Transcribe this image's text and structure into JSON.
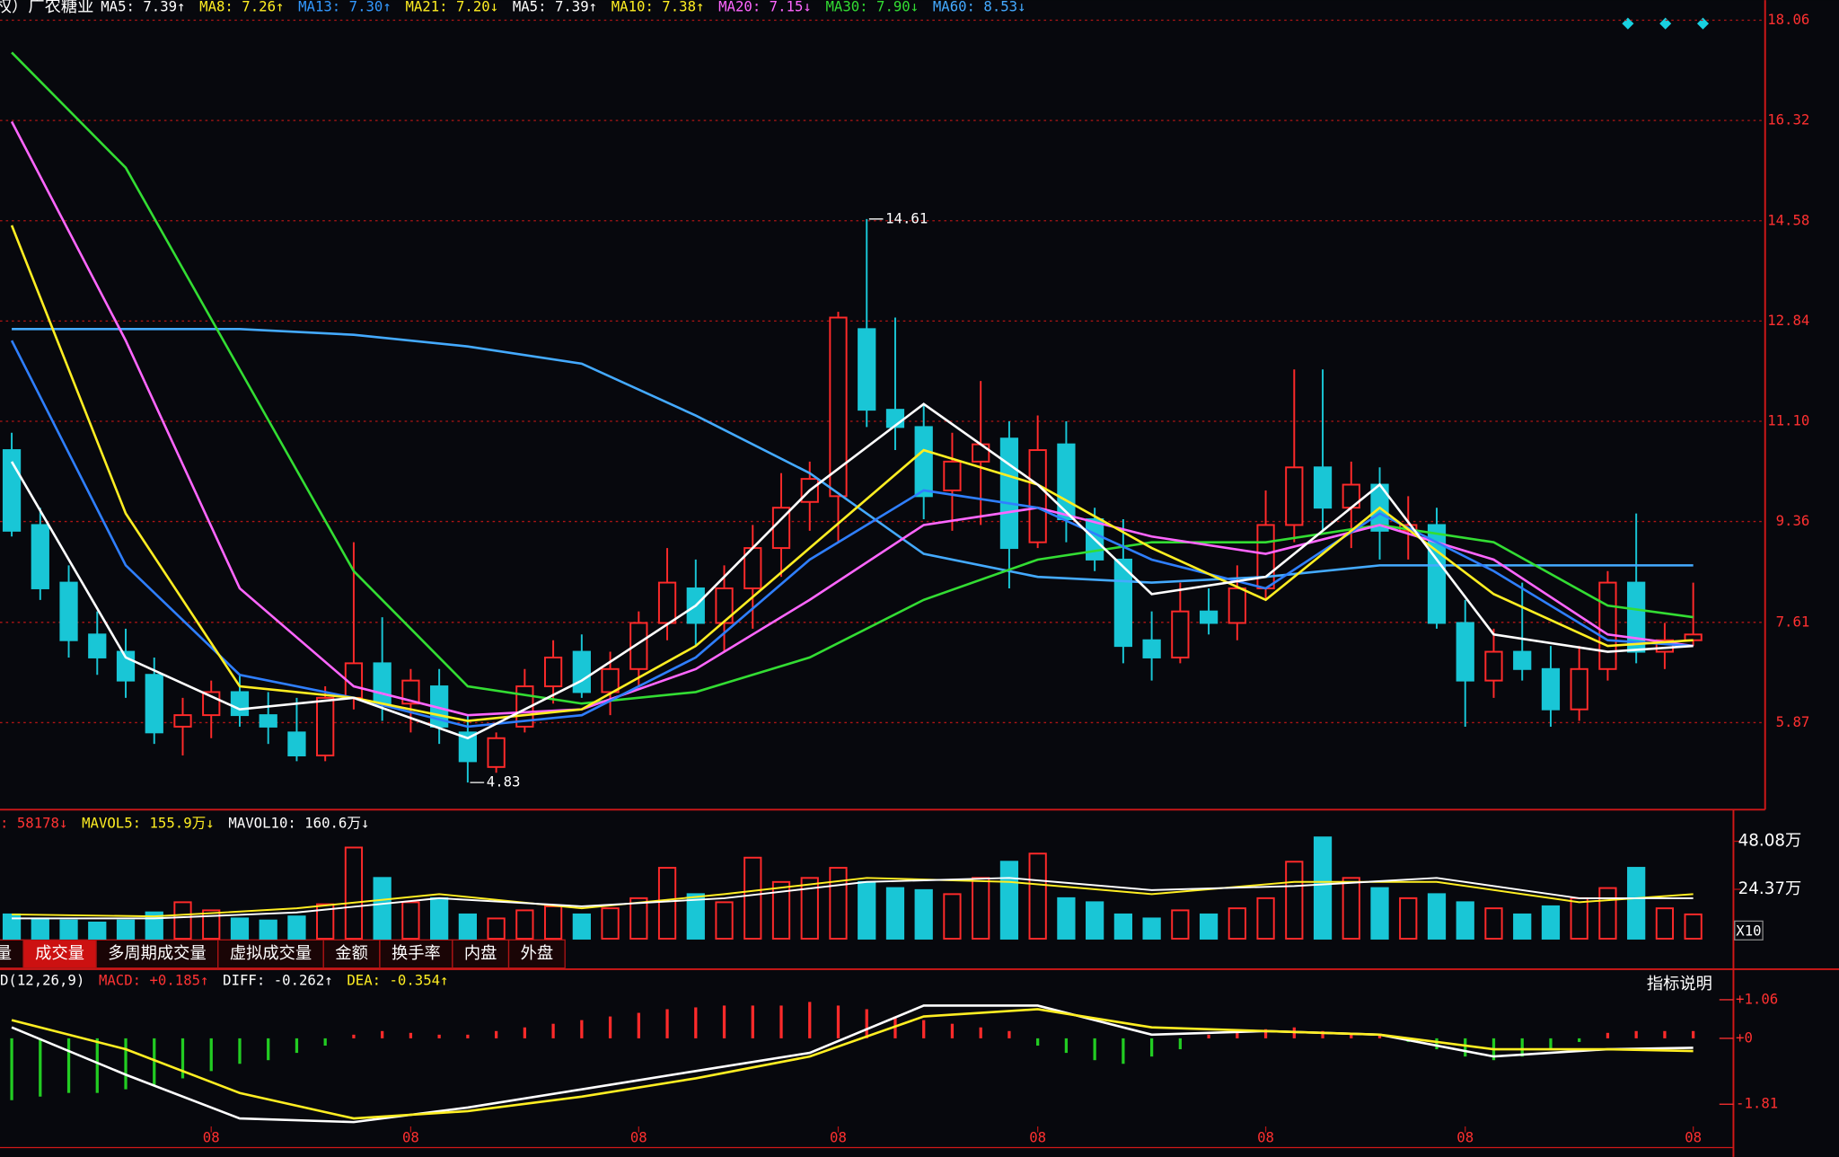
{
  "security": "权）广农糖业",
  "ma_legend": [
    {
      "text": "MA5: 7.39↑",
      "color": "#ffffff"
    },
    {
      "text": "MA8: 7.26↑",
      "color": "#ffee22"
    },
    {
      "text": "MA13: 7.30↑",
      "color": "#3399ff"
    },
    {
      "text": "MA21: 7.20↓",
      "color": "#ffee22"
    },
    {
      "text": "MA5: 7.39↑",
      "color": "#ffffff"
    },
    {
      "text": "MA10: 7.38↑",
      "color": "#ffee22"
    },
    {
      "text": "MA20: 7.15↓",
      "color": "#ff66ff"
    },
    {
      "text": "MA30: 7.90↓",
      "color": "#33dd33"
    },
    {
      "text": "MA60: 8.53↓",
      "color": "#44aaff"
    }
  ],
  "volume_legend": [
    {
      "text": ": 58178↓",
      "color": "#ff3333"
    },
    {
      "text": "MAVOL5: 155.9万↓",
      "color": "#ffee22"
    },
    {
      "text": "MAVOL10: 160.6万↓",
      "color": "#ffffff"
    }
  ],
  "macd_legend": [
    {
      "text": "D(12,26,9)",
      "color": "#ffffff"
    },
    {
      "text": "MACD: +0.185↑",
      "color": "#ff3333"
    },
    {
      "text": "DIFF: -0.262↑",
      "color": "#ffffff"
    },
    {
      "text": "DEA: -0.354↑",
      "color": "#ffee22"
    }
  ],
  "tabs": {
    "items": [
      "量",
      "成交量",
      "多周期成交量",
      "虚拟成交量",
      "金额",
      "换手率",
      "内盘",
      "外盘"
    ],
    "active": 1
  },
  "indicator_help": "指标说明",
  "volume_scale": "X10",
  "chart_data": [
    {
      "type": "candlestick",
      "up_color": "#ff2a2a",
      "down_color": "#19c6d6",
      "grid": true,
      "ylim": [
        4.36,
        18.41
      ],
      "yticks": [
        18.06,
        16.32,
        14.58,
        12.84,
        {
          "value": 11.1,
          "label": "11.10"
        },
        9.36,
        7.61,
        5.87
      ],
      "open": [
        10.6,
        9.3,
        8.3,
        7.4,
        7.1,
        6.7,
        5.8,
        6.0,
        6.4,
        6.0,
        5.7,
        5.3,
        6.3,
        6.9,
        6.2,
        6.5,
        5.7,
        5.1,
        5.8,
        6.5,
        7.1,
        6.4,
        6.8,
        7.6,
        8.2,
        7.6,
        8.2,
        8.9,
        9.7,
        9.8,
        12.7,
        11.3,
        11.0,
        9.9,
        10.4,
        10.8,
        9.0,
        10.7,
        9.4,
        8.7,
        7.3,
        7.0,
        7.8,
        7.6,
        8.2,
        9.3,
        10.3,
        9.6,
        10.0,
        9.2,
        9.3,
        7.6,
        6.6,
        7.1,
        6.8,
        6.1,
        6.8,
        8.3,
        7.1,
        7.3
      ],
      "high": [
        10.9,
        9.6,
        8.6,
        7.8,
        7.5,
        7.0,
        6.3,
        6.6,
        6.7,
        6.4,
        6.3,
        6.5,
        9.0,
        7.7,
        6.8,
        6.8,
        6.0,
        5.7,
        6.8,
        7.3,
        7.4,
        7.1,
        7.8,
        8.9,
        8.7,
        8.6,
        9.3,
        10.2,
        10.4,
        13.0,
        14.61,
        12.9,
        11.4,
        10.9,
        11.8,
        11.1,
        11.2,
        11.1,
        9.6,
        9.4,
        7.8,
        8.3,
        8.2,
        8.6,
        9.9,
        12.0,
        12.0,
        10.4,
        10.3,
        9.8,
        9.6,
        8.0,
        7.5,
        8.3,
        7.2,
        7.2,
        8.5,
        9.5,
        7.6,
        8.3
      ],
      "low": [
        9.1,
        8.0,
        7.0,
        6.7,
        6.3,
        5.5,
        5.3,
        5.6,
        5.8,
        5.5,
        5.2,
        5.2,
        6.1,
        5.9,
        5.7,
        5.5,
        4.83,
        5.0,
        5.7,
        6.2,
        6.3,
        6.0,
        6.5,
        7.3,
        7.2,
        7.1,
        7.5,
        8.4,
        9.2,
        9.0,
        11.0,
        10.6,
        9.4,
        9.2,
        9.3,
        8.2,
        8.9,
        9.0,
        8.5,
        6.9,
        6.6,
        6.9,
        7.4,
        7.3,
        8.0,
        9.0,
        9.2,
        8.9,
        8.7,
        8.7,
        7.5,
        5.8,
        6.3,
        6.6,
        5.8,
        5.9,
        6.6,
        6.9,
        6.8,
        7.2
      ],
      "close": [
        9.2,
        8.2,
        7.3,
        7.0,
        6.6,
        5.7,
        6.0,
        6.4,
        6.0,
        5.8,
        5.3,
        6.3,
        6.9,
        6.2,
        6.6,
        5.8,
        5.2,
        5.6,
        6.5,
        7.0,
        6.4,
        6.8,
        7.6,
        8.3,
        7.6,
        8.2,
        8.9,
        9.6,
        10.1,
        12.9,
        11.3,
        11.0,
        9.8,
        10.4,
        10.7,
        8.9,
        10.6,
        9.4,
        8.7,
        7.2,
        7.0,
        7.8,
        7.6,
        8.2,
        9.3,
        10.3,
        9.6,
        10.0,
        9.2,
        9.3,
        7.6,
        6.6,
        7.1,
        6.8,
        6.1,
        6.8,
        8.3,
        7.1,
        7.3,
        7.4
      ],
      "annotations": [
        {
          "index": 30,
          "value": 14.61
        },
        {
          "index": 16,
          "value": 4.83
        }
      ],
      "lines": [
        {
          "color": "#44aaff",
          "x": [
            0,
            4,
            8,
            12,
            16,
            20,
            24,
            28,
            32,
            36,
            40,
            44,
            48,
            52,
            56,
            59
          ],
          "values": [
            12.7,
            12.7,
            12.7,
            12.6,
            12.4,
            12.1,
            11.2,
            10.2,
            8.8,
            8.4,
            8.3,
            8.4,
            8.6,
            8.6,
            8.6,
            8.6
          ]
        },
        {
          "color": "#33dd33",
          "x": [
            0,
            4,
            8,
            12,
            16,
            20,
            24,
            28,
            32,
            36,
            40,
            44,
            48,
            52,
            56,
            59
          ],
          "values": [
            17.5,
            15.5,
            12.0,
            8.5,
            6.5,
            6.2,
            6.4,
            7.0,
            8.0,
            8.7,
            9.0,
            9.0,
            9.3,
            9.0,
            7.9,
            7.7
          ]
        },
        {
          "color": "#ff66ff",
          "x": [
            0,
            4,
            8,
            12,
            16,
            20,
            24,
            28,
            32,
            36,
            40,
            44,
            48,
            52,
            56,
            59
          ],
          "values": [
            16.3,
            12.5,
            8.2,
            6.5,
            6.0,
            6.1,
            6.8,
            8.0,
            9.3,
            9.6,
            9.1,
            8.8,
            9.3,
            8.7,
            7.4,
            7.2
          ]
        },
        {
          "color": "#2f7fff",
          "x": [
            0,
            4,
            8,
            12,
            16,
            20,
            24,
            28,
            32,
            36,
            40,
            44,
            48,
            52,
            56,
            59
          ],
          "values": [
            12.5,
            8.6,
            6.7,
            6.3,
            5.8,
            6.0,
            7.0,
            8.7,
            9.9,
            9.6,
            8.7,
            8.2,
            9.5,
            8.5,
            7.3,
            7.2
          ]
        },
        {
          "color": "#ffee22",
          "x": [
            0,
            4,
            8,
            12,
            16,
            20,
            24,
            28,
            32,
            36,
            40,
            44,
            48,
            52,
            56,
            59
          ],
          "values": [
            14.5,
            9.5,
            6.5,
            6.3,
            5.9,
            6.1,
            7.2,
            8.9,
            10.6,
            10.0,
            8.9,
            8.0,
            9.6,
            8.1,
            7.2,
            7.3
          ]
        },
        {
          "color": "#ffffff",
          "x": [
            0,
            4,
            8,
            12,
            16,
            20,
            24,
            28,
            32,
            36,
            40,
            44,
            48,
            52,
            56,
            59
          ],
          "values": [
            10.4,
            7.0,
            6.1,
            6.3,
            5.6,
            6.6,
            7.9,
            9.9,
            11.4,
            10.0,
            8.1,
            8.4,
            10.0,
            7.4,
            7.1,
            7.2
          ]
        }
      ]
    },
    {
      "type": "volume",
      "ylim": [
        0,
        63.7
      ],
      "yticks": [
        {
          "value": 24.37,
          "label": "24.37万"
        },
        {
          "value": 48.08,
          "label": "48.08万"
        }
      ],
      "values": [
        12,
        10,
        9,
        8,
        9,
        13,
        18,
        14,
        10,
        9,
        11,
        17,
        45,
        30,
        18,
        20,
        12,
        10,
        14,
        16,
        12,
        15,
        20,
        35,
        22,
        18,
        40,
        28,
        30,
        35,
        28,
        25,
        24,
        22,
        30,
        38,
        42,
        20,
        18,
        12,
        10,
        14,
        12,
        15,
        20,
        38,
        50,
        30,
        25,
        20,
        22,
        18,
        15,
        12,
        16,
        20,
        25,
        35,
        15,
        12
      ],
      "lines": [
        {
          "color": "#ffee22",
          "x": [
            0,
            5,
            10,
            15,
            20,
            25,
            30,
            35,
            40,
            45,
            50,
            55,
            59
          ],
          "values": [
            12,
            11,
            15,
            22,
            15,
            22,
            30,
            28,
            22,
            28,
            28,
            18,
            22
          ]
        },
        {
          "color": "#ffffff",
          "x": [
            0,
            5,
            10,
            15,
            20,
            25,
            30,
            35,
            40,
            45,
            50,
            55,
            59
          ],
          "values": [
            10,
            10,
            13,
            20,
            16,
            20,
            28,
            30,
            24,
            26,
            30,
            20,
            20
          ]
        }
      ]
    },
    {
      "type": "macd",
      "up_color": "#ff2a2a",
      "down_color": "#22cc22",
      "ylim": [
        -2.42,
        1.77
      ],
      "yticks": [
        {
          "value": 1.06,
          "label": "+1.06"
        },
        {
          "value": 0,
          "label": "+0"
        },
        -1.81
      ],
      "categories": [
        null,
        null,
        null,
        null,
        null,
        null,
        null,
        "08",
        null,
        null,
        null,
        null,
        null,
        null,
        "08",
        null,
        null,
        null,
        null,
        null,
        null,
        null,
        "08",
        null,
        null,
        null,
        null,
        null,
        null,
        "08",
        null,
        null,
        null,
        null,
        null,
        null,
        "08",
        null,
        null,
        null,
        null,
        null,
        null,
        null,
        "08",
        null,
        null,
        null,
        null,
        null,
        null,
        "08",
        null,
        null,
        null,
        null,
        null,
        null,
        null,
        "08"
      ],
      "values": [
        -1.7,
        -1.6,
        -1.5,
        -1.5,
        -1.4,
        -1.3,
        -1.1,
        -0.9,
        -0.7,
        -0.6,
        -0.4,
        -0.2,
        0.1,
        0.2,
        0.15,
        0.1,
        0.1,
        0.2,
        0.3,
        0.4,
        0.5,
        0.6,
        0.7,
        0.8,
        0.85,
        0.9,
        0.9,
        0.9,
        1.0,
        0.9,
        0.8,
        0.6,
        0.5,
        0.4,
        0.3,
        0.2,
        -0.2,
        -0.4,
        -0.6,
        -0.7,
        -0.5,
        -0.3,
        0.1,
        0.2,
        0.25,
        0.3,
        0.2,
        0.15,
        0.1,
        -0.1,
        -0.3,
        -0.5,
        -0.6,
        -0.5,
        -0.3,
        -0.1,
        0.15,
        0.2,
        0.2,
        0.2
      ],
      "lines": [
        {
          "color": "#ffffff",
          "x": [
            0,
            4,
            8,
            12,
            16,
            20,
            24,
            28,
            32,
            36,
            40,
            44,
            48,
            52,
            56,
            59
          ],
          "values": [
            0.3,
            -1.0,
            -2.2,
            -2.3,
            -1.9,
            -1.4,
            -0.9,
            -0.4,
            0.9,
            0.9,
            0.1,
            0.2,
            0.1,
            -0.5,
            -0.3,
            -0.26
          ]
        },
        {
          "color": "#ffee22",
          "x": [
            0,
            4,
            8,
            12,
            16,
            20,
            24,
            28,
            32,
            36,
            40,
            44,
            48,
            52,
            56,
            59
          ],
          "values": [
            0.5,
            -0.3,
            -1.5,
            -2.2,
            -2.0,
            -1.6,
            -1.1,
            -0.5,
            0.6,
            0.8,
            0.3,
            0.2,
            0.1,
            -0.3,
            -0.3,
            -0.35
          ]
        }
      ]
    }
  ]
}
